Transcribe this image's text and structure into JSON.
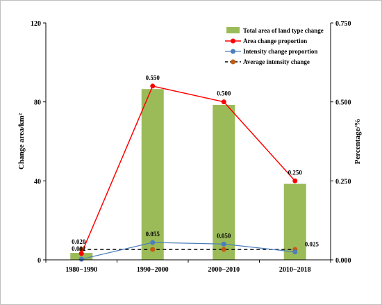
{
  "chart_data": {
    "type": "bar+line",
    "categories": [
      "1980−1990",
      "1990−2000",
      "2000−2010",
      "2010−2018"
    ],
    "left_axis": {
      "label": "Change area/km²",
      "ylim": [
        0,
        120
      ],
      "ticks": [
        "0",
        "40",
        "80",
        "120"
      ],
      "tick_values": [
        0,
        40,
        80,
        120
      ]
    },
    "right_axis": {
      "label": "Percentage/%",
      "ylim": [
        0,
        0.75
      ],
      "ticks": [
        "0.000",
        "0.250",
        "0.500",
        "0.750"
      ],
      "tick_values": [
        0,
        0.25,
        0.5,
        0.75
      ]
    },
    "series": [
      {
        "name": "Total area of land type change",
        "kind": "bar",
        "axis": "left",
        "values": [
          3.5,
          86.5,
          78.5,
          38.5
        ],
        "color": "#9bbb59"
      },
      {
        "name": "Area change proportion",
        "kind": "line",
        "axis": "right",
        "values": [
          0.02,
          0.55,
          0.5,
          0.25
        ],
        "labels": [
          "0.020",
          "0.550",
          "0.500",
          "0.250"
        ],
        "color": "#ff0000"
      },
      {
        "name": "Intensity change proportion",
        "kind": "line",
        "axis": "right",
        "values": [
          0.002,
          0.055,
          0.05,
          0.025
        ],
        "labels": [
          "0.002",
          "0.055",
          "0.050",
          "0.025"
        ],
        "color": "#4a7ebb"
      },
      {
        "name": "Average  intensity change",
        "kind": "dashed-line",
        "axis": "right",
        "values": [
          0.033,
          0.033,
          0.033,
          0.033
        ],
        "color": "#c55a11",
        "line_color": "#000000"
      }
    ],
    "legend_position": "top-right",
    "grid": false
  }
}
